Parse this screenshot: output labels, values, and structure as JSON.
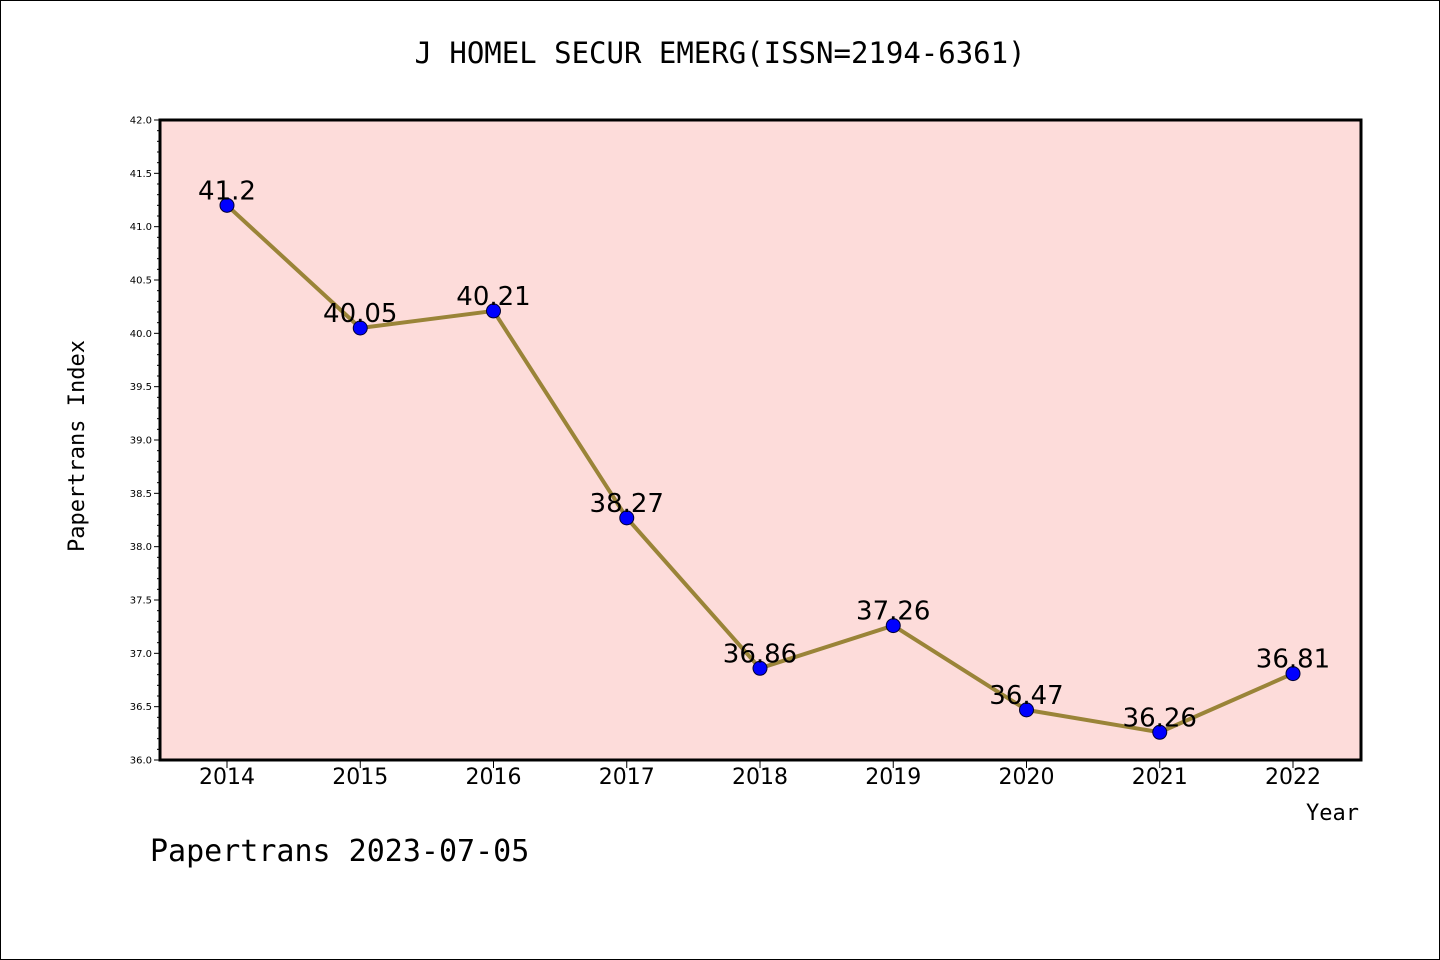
{
  "chart_data": {
    "type": "line",
    "title": "J HOMEL SECUR EMERG(ISSN=2194-6361)",
    "xlabel": "Year",
    "ylabel": "Papertrans Index",
    "x": [
      "2014",
      "2015",
      "2016",
      "2017",
      "2018",
      "2019",
      "2020",
      "2021",
      "2022"
    ],
    "values": [
      41.2,
      40.05,
      40.21,
      38.27,
      36.86,
      37.26,
      36.47,
      36.26,
      36.81
    ],
    "data_labels": [
      "41.2",
      "40.05",
      "40.21",
      "38.27",
      "36.86",
      "37.26",
      "36.47",
      "36.26",
      "36.81"
    ],
    "ylim": [
      36.0,
      42.0
    ],
    "yticks": [
      "36.0",
      "36.5",
      "37.0",
      "37.5",
      "38.0",
      "38.5",
      "39.0",
      "39.5",
      "40.0",
      "40.5",
      "41.0",
      "41.5",
      "42.0"
    ],
    "grid": false,
    "legend": "none",
    "colors": {
      "plot_background": "#fddcda",
      "line": "#9a8438",
      "marker": "#0000ff"
    }
  },
  "footer": "Papertrans 2023-07-05"
}
